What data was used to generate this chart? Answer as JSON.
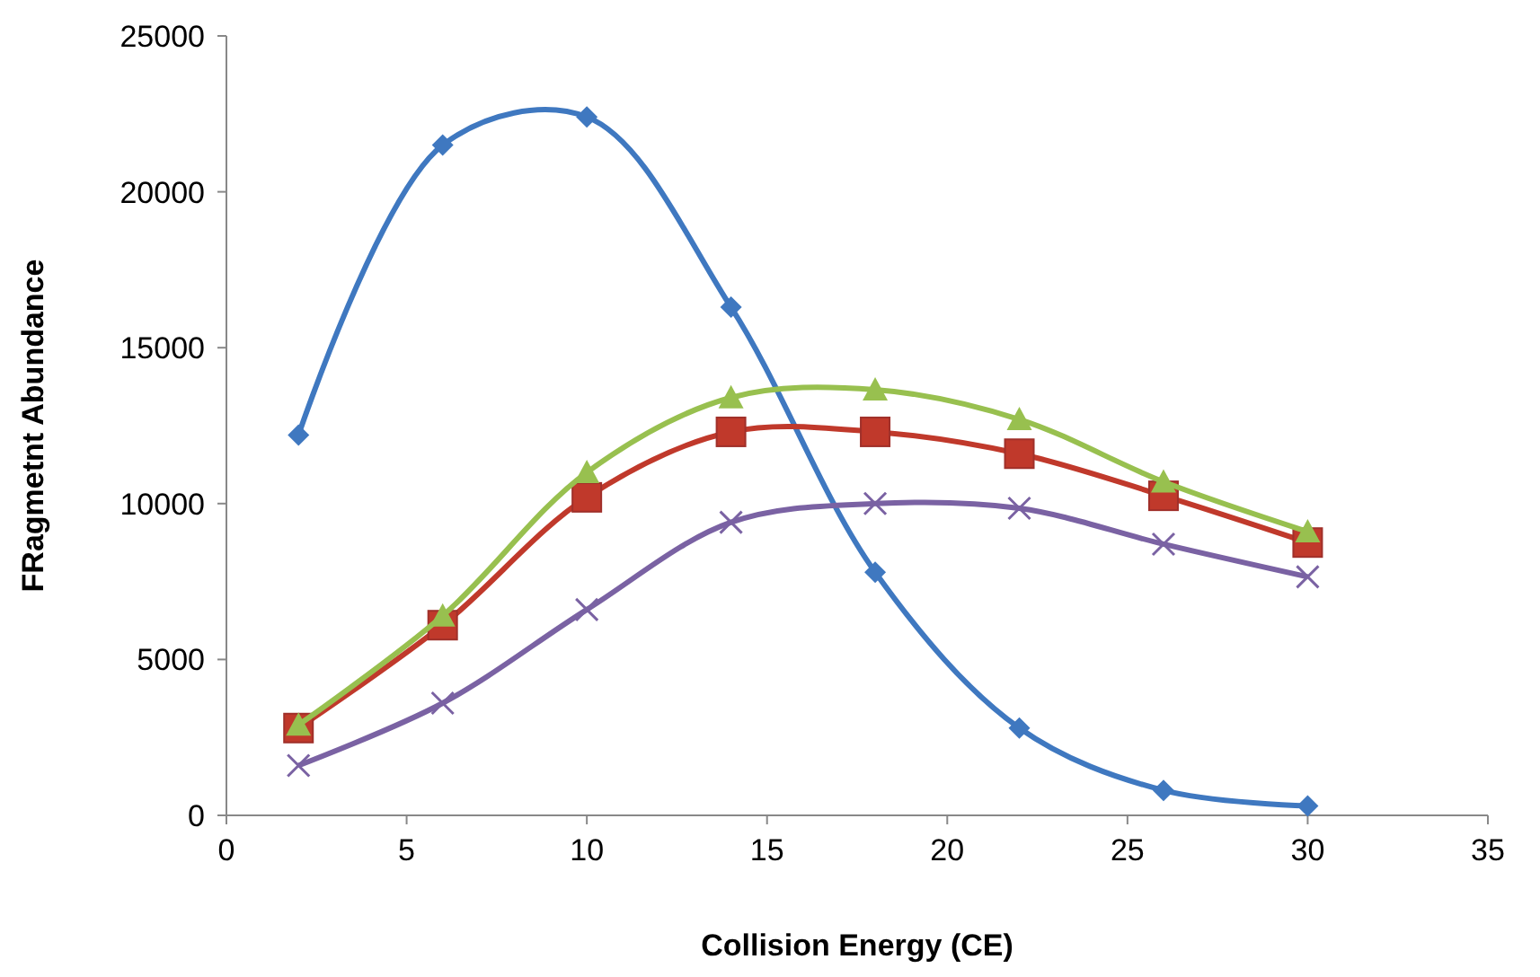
{
  "chart_data": {
    "type": "line",
    "xlabel": "Collision Energy (CE)",
    "ylabel": "FRagmetnt Abundance",
    "x": [
      2,
      6,
      10,
      14,
      18,
      22,
      26,
      30
    ],
    "xlim": [
      0,
      35
    ],
    "xticks": [
      0,
      5,
      10,
      15,
      20,
      25,
      30,
      35
    ],
    "ylim": [
      0,
      25000
    ],
    "yticks": [
      0,
      5000,
      10000,
      15000,
      20000,
      25000
    ],
    "grid": false,
    "line_style": "solid",
    "series": [
      {
        "color": "#3f78c0",
        "marker": "diamond",
        "values": [
          12200,
          21500,
          22400,
          16300,
          7800,
          2800,
          800,
          300
        ]
      },
      {
        "color": "#c0392b",
        "marker": "square",
        "values": [
          2800,
          6100,
          10200,
          12300,
          12300,
          11600,
          10250,
          8750
        ]
      },
      {
        "color": "#98c04f",
        "marker": "triangle",
        "values": [
          2900,
          6400,
          11000,
          13400,
          13650,
          12700,
          10700,
          9100
        ]
      },
      {
        "color": "#7a62a3",
        "marker": "cross",
        "values": [
          1600,
          3600,
          6600,
          9400,
          10000,
          9850,
          8700,
          7650
        ]
      }
    ]
  }
}
